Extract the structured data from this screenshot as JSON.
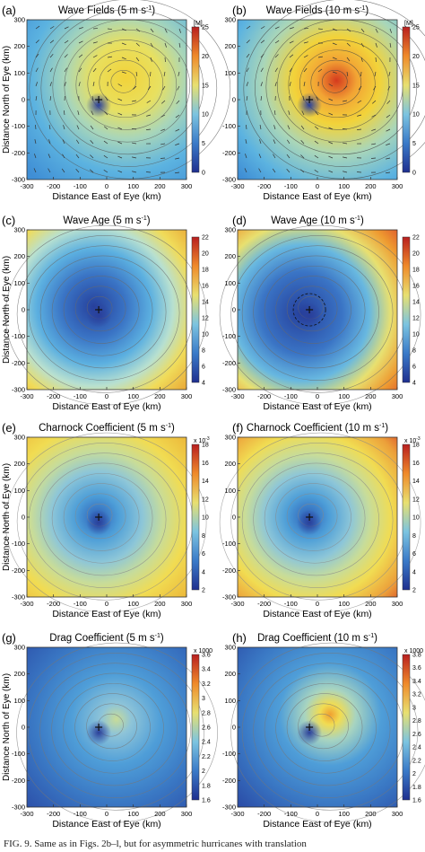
{
  "figure": {
    "panels": [
      {
        "letter": "(a)",
        "title": "Wave Fields (5 m s",
        "title_sup": "-1",
        "title_end": ")",
        "ylabel": "Distance North of Eye (km)",
        "xlabel": "Distance East of Eye (km)",
        "cbar_unit": "[M]",
        "cbar_ticks": [
          "25",
          "20",
          "15",
          "10",
          "5",
          "0"
        ]
      },
      {
        "letter": "(b)",
        "title": "Wave Fields (10 m s",
        "title_sup": "-1",
        "title_end": ")",
        "ylabel": "",
        "xlabel": "Distance East of Eye (km)",
        "cbar_unit": "[M]",
        "cbar_ticks": [
          "25",
          "20",
          "15",
          "10",
          "5",
          "0"
        ]
      },
      {
        "letter": "(c)",
        "title": "Wave Age (5 m s",
        "title_sup": "-1",
        "title_end": ")",
        "ylabel": "Distance North of Eye (km)",
        "xlabel": "Distance East of Eye (km)",
        "cbar_unit": "",
        "cbar_ticks": [
          "22",
          "20",
          "18",
          "16",
          "14",
          "12",
          "10",
          "8",
          "6",
          "4"
        ]
      },
      {
        "letter": "(d)",
        "title": "Wave Age (10 m s",
        "title_sup": "-1",
        "title_end": ")",
        "ylabel": "",
        "xlabel": "Distance East of Eye (km)",
        "cbar_unit": "",
        "cbar_ticks": [
          "22",
          "20",
          "18",
          "16",
          "14",
          "12",
          "10",
          "8",
          "6",
          "4"
        ]
      },
      {
        "letter": "(e)",
        "title": "Charnock Coefficient (5 m s",
        "title_sup": "-1",
        "title_end": ")",
        "ylabel": "Distance North of Eye (km)",
        "xlabel": "Distance East of Eye (km)",
        "cbar_unit": "x 10",
        "cbar_unit_sup": "-3",
        "cbar_ticks": [
          "18",
          "16",
          "14",
          "12",
          "10",
          "8",
          "6",
          "4",
          "2"
        ]
      },
      {
        "letter": "(f)",
        "title": "Charnock Coefficient (10 m s",
        "title_sup": "-1",
        "title_end": ")",
        "ylabel": "",
        "xlabel": "Distance East of Eye (km)",
        "cbar_unit": "x 10",
        "cbar_unit_sup": "-3",
        "cbar_ticks": [
          "18",
          "16",
          "14",
          "12",
          "10",
          "8",
          "6",
          "4",
          "2"
        ]
      },
      {
        "letter": "(g)",
        "title": "Drag Coefficient (5 m s",
        "title_sup": "-1",
        "title_end": ")",
        "ylabel": "Distance North of Eye (km)",
        "xlabel": "Distance East of Eye (km)",
        "cbar_unit": "x 1000",
        "cbar_ticks": [
          "3.6",
          "3.4",
          "3.2",
          "3",
          "2.8",
          "2.6",
          "2.4",
          "2.2",
          "2",
          "1.8",
          "1.6"
        ]
      },
      {
        "letter": "(h)",
        "title": "Drag Coefficient (10 m s",
        "title_sup": "-1",
        "title_end": ")",
        "ylabel": "",
        "xlabel": "Distance East of Eye (km)",
        "cbar_unit": "x 1000",
        "cbar_ticks": [
          "3.8",
          "3.6",
          "3.4",
          "3.2",
          "3",
          "2.8",
          "2.6",
          "2.4",
          "2.2",
          "2",
          "1.8",
          "1.6"
        ]
      }
    ],
    "x_ticks": [
      "-300",
      "-200",
      "-100",
      "0",
      "100",
      "200",
      "300"
    ],
    "y_ticks": [
      "300",
      "200",
      "100",
      "0",
      "-100",
      "-200",
      "-300"
    ]
  },
  "caption": "FIG. 9. Same as in Figs. 2b–l, but for asymmetric hurricanes with translation"
}
